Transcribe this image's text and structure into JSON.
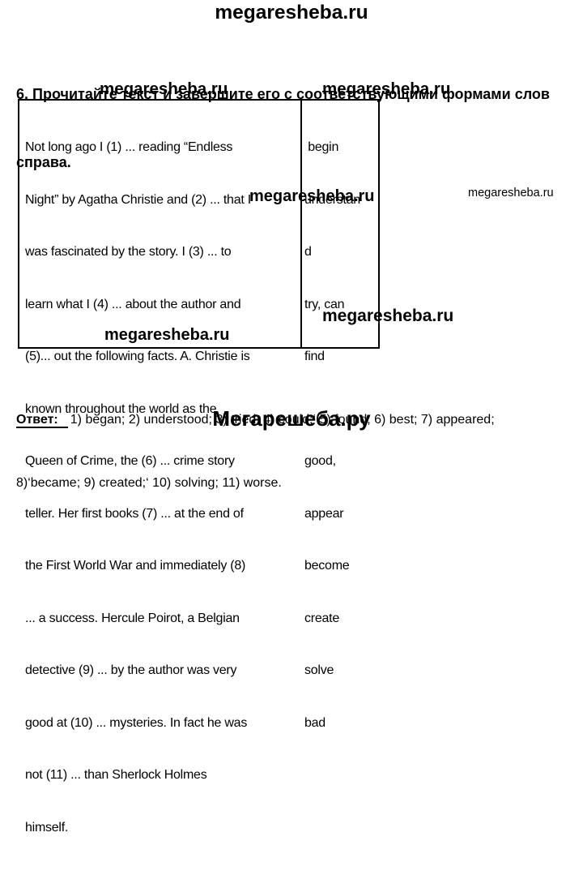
{
  "brand": {
    "top": "megaresheba.ru",
    "watermark": "megaresheba.ru",
    "bottom": "Мегарешеба.ру"
  },
  "task": {
    "line1": "6. Прочитайте текст и завершите его с соответствующими формами слов",
    "line2": "справа."
  },
  "exercise": {
    "text_lines": [
      "Not long ago I (1) ... reading “Endless",
      "Night” by Agatha Christie and (2) ... that I",
      "was fascinated by the story. I (3) ... to",
      "learn what I (4) ... about the author and",
      "(5)... out the following facts. A. Christie is",
      "known throughout the world as the",
      "Queen of Crime, the (6) ... crime story",
      "teller. Her first books (7) ... at the end of",
      "the First World War and immediately (8)",
      "... a success. Hercule Poirot, a Belgian",
      "detective (9) ... by the author was very",
      "good at (10) ... mysteries. In fact he was",
      "not (11) ... than Sherlock Holmes",
      "himself."
    ],
    "word_bank_lines": [
      " begin",
      "understan",
      "d",
      "try, can",
      "find",
      "",
      "good,",
      "appear",
      "become",
      "create",
      "solve",
      "bad"
    ]
  },
  "answer": {
    "label": "Ответ:",
    "line1": "1) began; 2) understood; 3) tried; 4) could;‘ 5) found; 6) best; 7) appeared;",
    "line2": "8)‘became; 9) created;‘ 10) solving; 11) worse."
  }
}
